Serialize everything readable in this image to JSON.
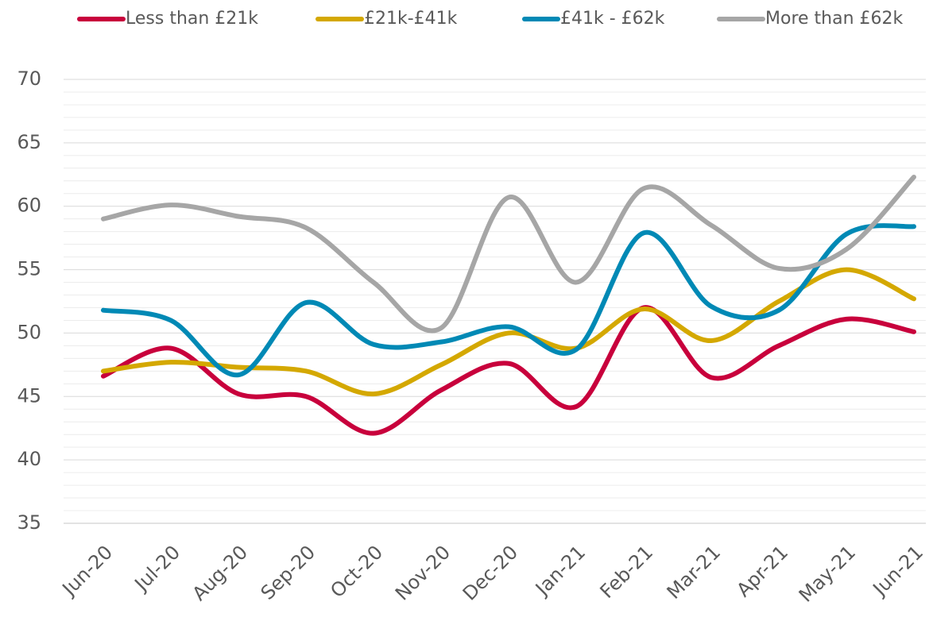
{
  "chart_data": {
    "type": "line",
    "categories": [
      "Jun-20",
      "Jul-20",
      "Aug-20",
      "Sep-20",
      "Oct-20",
      "Nov-20",
      "Dec-20",
      "Jan-21",
      "Feb-21",
      "Mar-21",
      "Apr-21",
      "May-21",
      "Jun-21"
    ],
    "series": [
      {
        "name": "Less than £21k",
        "color": "#c8003c",
        "values": [
          46.6,
          48.8,
          45.2,
          45.0,
          42.1,
          45.5,
          47.6,
          44.2,
          52.0,
          46.5,
          49.0,
          51.1,
          50.1
        ]
      },
      {
        "name": "£21k-£41k",
        "color": "#d4a800",
        "values": [
          47.0,
          47.7,
          47.3,
          47.0,
          45.2,
          47.5,
          50.0,
          48.8,
          51.9,
          49.4,
          52.5,
          55.0,
          52.7
        ]
      },
      {
        "name": "£41k - £62k",
        "color": "#0089b5",
        "values": [
          51.8,
          51.0,
          46.7,
          52.4,
          49.1,
          49.3,
          50.5,
          48.7,
          57.9,
          52.1,
          51.8,
          57.8,
          58.4
        ]
      },
      {
        "name": "More than £62k",
        "color": "#a6a6a6",
        "values": [
          59.0,
          60.1,
          59.2,
          58.3,
          54.0,
          50.4,
          60.7,
          54.0,
          61.4,
          58.5,
          55.1,
          56.6,
          62.3
        ]
      }
    ],
    "ylim": [
      35,
      70
    ],
    "yticks": [
      35,
      40,
      45,
      50,
      55,
      60,
      65,
      70
    ],
    "minor_yticks": [
      36,
      37,
      38,
      39,
      41,
      42,
      43,
      44,
      46,
      47,
      48,
      49,
      51,
      52,
      53,
      54,
      56,
      57,
      58,
      59,
      61,
      62,
      63,
      64,
      66,
      67,
      68,
      69
    ],
    "grid": true,
    "smooth": true,
    "legend": "top"
  }
}
